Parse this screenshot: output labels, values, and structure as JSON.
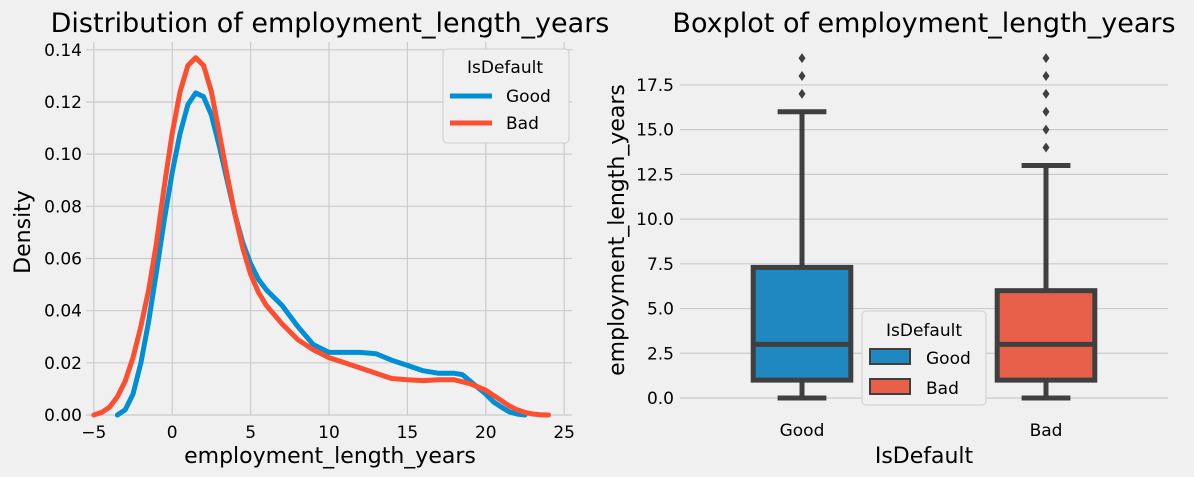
{
  "chart_data": [
    {
      "type": "line",
      "subtype": "kde",
      "title": "Distribution of employment_length_years",
      "xlabel": "employment_length_years",
      "ylabel": "Density",
      "xlim": [
        -5.5,
        25.5
      ],
      "ylim": [
        0,
        0.143
      ],
      "xticks": [
        -5,
        0,
        5,
        10,
        15,
        20,
        25
      ],
      "yticks": [
        0.0,
        0.02,
        0.04,
        0.06,
        0.08,
        0.1,
        0.12,
        0.14
      ],
      "ytick_labels": [
        "0.00",
        "0.02",
        "0.04",
        "0.06",
        "0.08",
        "0.10",
        "0.12",
        "0.14"
      ],
      "grid": true,
      "legend": {
        "title": "IsDefault",
        "position": "top-right"
      },
      "series": [
        {
          "name": "Good",
          "color": "#008fd5",
          "points": [
            [
              -3.5,
              0
            ],
            [
              -3,
              0.002
            ],
            [
              -2.5,
              0.008
            ],
            [
              -2,
              0.02
            ],
            [
              -1.5,
              0.036
            ],
            [
              -1,
              0.055
            ],
            [
              -0.5,
              0.075
            ],
            [
              0,
              0.093
            ],
            [
              0.5,
              0.108
            ],
            [
              1,
              0.119
            ],
            [
              1.5,
              0.1235
            ],
            [
              2,
              0.122
            ],
            [
              2.5,
              0.115
            ],
            [
              3,
              0.103
            ],
            [
              3.5,
              0.09
            ],
            [
              4,
              0.077
            ],
            [
              4.5,
              0.066
            ],
            [
              5,
              0.058
            ],
            [
              5.5,
              0.052
            ],
            [
              6,
              0.048
            ],
            [
              7,
              0.042
            ],
            [
              8,
              0.034
            ],
            [
              9,
              0.027
            ],
            [
              10,
              0.024
            ],
            [
              11,
              0.024
            ],
            [
              12,
              0.024
            ],
            [
              13,
              0.0235
            ],
            [
              14,
              0.021
            ],
            [
              15,
              0.019
            ],
            [
              16,
              0.017
            ],
            [
              17,
              0.016
            ],
            [
              18,
              0.016
            ],
            [
              18.5,
              0.0155
            ],
            [
              19,
              0.013
            ],
            [
              19.5,
              0.0105
            ],
            [
              20,
              0.008
            ],
            [
              20.5,
              0.005
            ],
            [
              21,
              0.003
            ],
            [
              21.5,
              0.0012
            ],
            [
              22,
              0.0004
            ],
            [
              22.5,
              0
            ]
          ]
        },
        {
          "name": "Bad",
          "color": "#fc4f30",
          "points": [
            [
              -5,
              0
            ],
            [
              -4.5,
              0.001
            ],
            [
              -4,
              0.003
            ],
            [
              -3.5,
              0.007
            ],
            [
              -3,
              0.013
            ],
            [
              -2.5,
              0.022
            ],
            [
              -2,
              0.034
            ],
            [
              -1.5,
              0.048
            ],
            [
              -1,
              0.066
            ],
            [
              -0.5,
              0.088
            ],
            [
              0,
              0.108
            ],
            [
              0.5,
              0.124
            ],
            [
              1,
              0.134
            ],
            [
              1.5,
              0.137
            ],
            [
              2,
              0.134
            ],
            [
              2.5,
              0.124
            ],
            [
              3,
              0.108
            ],
            [
              3.5,
              0.092
            ],
            [
              4,
              0.077
            ],
            [
              4.5,
              0.064
            ],
            [
              5,
              0.054
            ],
            [
              5.5,
              0.047
            ],
            [
              6,
              0.042
            ],
            [
              7,
              0.035
            ],
            [
              8,
              0.029
            ],
            [
              9,
              0.025
            ],
            [
              10,
              0.022
            ],
            [
              11,
              0.02
            ],
            [
              12,
              0.018
            ],
            [
              13,
              0.016
            ],
            [
              14,
              0.014
            ],
            [
              15,
              0.0135
            ],
            [
              16,
              0.0132
            ],
            [
              17,
              0.0135
            ],
            [
              18,
              0.0135
            ],
            [
              19,
              0.012
            ],
            [
              20,
              0.0095
            ],
            [
              20.5,
              0.0075
            ],
            [
              21,
              0.0055
            ],
            [
              21.5,
              0.0035
            ],
            [
              22,
              0.002
            ],
            [
              22.5,
              0.001
            ],
            [
              23,
              0.0004
            ],
            [
              23.5,
              0.0001
            ],
            [
              24,
              0
            ]
          ]
        }
      ]
    },
    {
      "type": "box",
      "title": "Boxplot of employment_length_years",
      "xlabel": "IsDefault",
      "ylabel": "employment_length_years",
      "categories": [
        "Good",
        "Bad"
      ],
      "ylim": [
        -0.95,
        19.9
      ],
      "yticks": [
        0.0,
        2.5,
        5.0,
        7.5,
        10.0,
        12.5,
        15.0,
        17.5
      ],
      "ytick_labels": [
        "0.0",
        "2.5",
        "5.0",
        "7.5",
        "10.0",
        "12.5",
        "15.0",
        "17.5"
      ],
      "grid": true,
      "legend": {
        "title": "IsDefault",
        "position": "lower-center"
      },
      "boxes": [
        {
          "name": "Good",
          "color": "#1f88c0",
          "q1": 1,
          "median": 3,
          "q3": 7.3,
          "whisker_low": 0,
          "whisker_high": 16,
          "outliers": [
            17,
            18,
            19
          ]
        },
        {
          "name": "Bad",
          "color": "#e8604a",
          "q1": 1,
          "median": 3,
          "q3": 6,
          "whisker_low": 0,
          "whisker_high": 13,
          "outliers": [
            14,
            15,
            16,
            17,
            18,
            19
          ]
        }
      ]
    }
  ]
}
